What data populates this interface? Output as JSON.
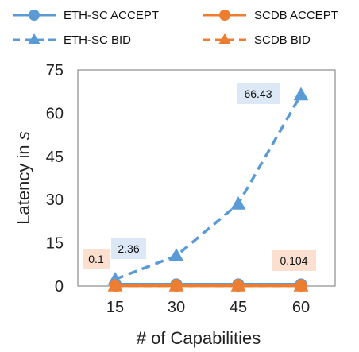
{
  "chart_data": {
    "type": "line",
    "xlabel": "# of Capabilities",
    "ylabel_prefix": "Latency  in  ",
    "ylabel_unit": "s",
    "ylim": [
      0,
      75
    ],
    "yticks": [
      0,
      15,
      30,
      45,
      60,
      75
    ],
    "x": [
      15,
      30,
      45,
      60
    ],
    "grid": false,
    "legend_position": "top",
    "series": [
      {
        "name": "ETH-SC ACCEPT",
        "values": [
          0.6,
          0.6,
          0.6,
          0.6
        ],
        "color": "#5B9BD5",
        "dash": false,
        "marker": "circle"
      },
      {
        "name": "SCDB ACCEPT",
        "values": [
          0.1,
          0.1,
          0.1,
          0.1
        ],
        "color": "#ED7D31",
        "dash": false,
        "marker": "circle"
      },
      {
        "name": "ETH-SC BID",
        "values": [
          2.36,
          10.5,
          28.5,
          66.43
        ],
        "color": "#5B9BD5",
        "dash": true,
        "marker": "triangle"
      },
      {
        "name": "SCDB BID",
        "values": [
          0.1,
          0.102,
          0.103,
          0.104
        ],
        "color": "#ED7D31",
        "dash": true,
        "marker": "triangle"
      }
    ],
    "annotations": [
      {
        "text": "0.1",
        "x": 15,
        "y": 0.1,
        "fill": "#FBE0D0"
      },
      {
        "text": "2.36",
        "x": 15,
        "y": 2.36,
        "fill": "#DCE8F5"
      },
      {
        "text": "66.43",
        "x": 60,
        "y": 66.43,
        "fill": "#DCE8F5"
      },
      {
        "text": "0.104",
        "x": 60,
        "y": 0.104,
        "fill": "#FBE0D0"
      }
    ]
  }
}
